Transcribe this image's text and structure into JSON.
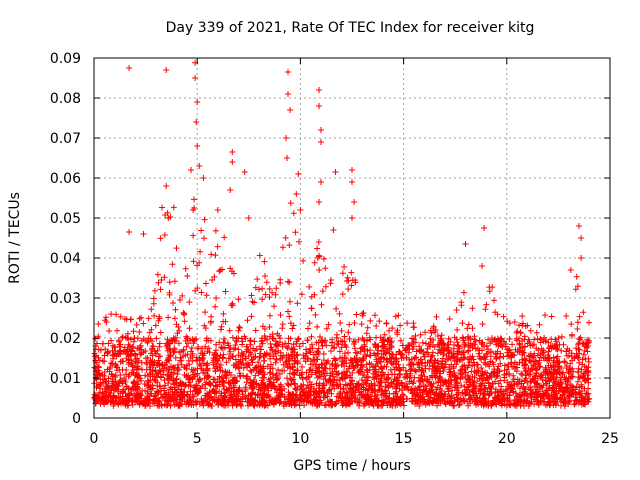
{
  "chart_data": {
    "type": "scatter",
    "title": "Day 339 of 2021, Rate Of TEC Index for receiver kitg",
    "xlabel": "GPS time / hours",
    "ylabel": "ROTI / TECUs",
    "xlim": [
      0,
      25
    ],
    "ylim": [
      0,
      0.09
    ],
    "x_ticks": [
      0,
      5,
      10,
      15,
      20,
      25
    ],
    "x_tick_labels": [
      "0",
      "5",
      "10",
      "15",
      "20",
      "25"
    ],
    "y_ticks": [
      0,
      0.01,
      0.02,
      0.03,
      0.04,
      0.05,
      0.06,
      0.07,
      0.08,
      0.09
    ],
    "y_tick_labels": [
      "0",
      "0.01",
      "0.02",
      "0.03",
      "0.04",
      "0.05",
      "0.06",
      "0.07",
      "0.08",
      "0.09"
    ],
    "grid": true,
    "marker": "plus",
    "color": "#ff0000",
    "data_span_hours": [
      0,
      24
    ],
    "baseline_range": [
      0.003,
      0.02
    ],
    "outliers": [
      {
        "x": 1.7,
        "y": 0.0875
      },
      {
        "x": 1.7,
        "y": 0.0465
      },
      {
        "x": 2.4,
        "y": 0.046
      },
      {
        "x": 3.5,
        "y": 0.087
      },
      {
        "x": 3.5,
        "y": 0.058
      },
      {
        "x": 3.6,
        "y": 0.05
      },
      {
        "x": 4.9,
        "y": 0.0888
      },
      {
        "x": 4.9,
        "y": 0.085
      },
      {
        "x": 5.0,
        "y": 0.079
      },
      {
        "x": 4.95,
        "y": 0.074
      },
      {
        "x": 5.0,
        "y": 0.068
      },
      {
        "x": 5.1,
        "y": 0.063
      },
      {
        "x": 4.8,
        "y": 0.052
      },
      {
        "x": 4.7,
        "y": 0.062
      },
      {
        "x": 5.3,
        "y": 0.06
      },
      {
        "x": 6.0,
        "y": 0.052
      },
      {
        "x": 6.7,
        "y": 0.0665
      },
      {
        "x": 6.7,
        "y": 0.064
      },
      {
        "x": 6.6,
        "y": 0.057
      },
      {
        "x": 7.3,
        "y": 0.0615
      },
      {
        "x": 7.5,
        "y": 0.05
      },
      {
        "x": 9.4,
        "y": 0.0865
      },
      {
        "x": 9.4,
        "y": 0.081
      },
      {
        "x": 9.5,
        "y": 0.077
      },
      {
        "x": 9.3,
        "y": 0.07
      },
      {
        "x": 9.35,
        "y": 0.065
      },
      {
        "x": 9.9,
        "y": 0.061
      },
      {
        "x": 9.8,
        "y": 0.056
      },
      {
        "x": 10.0,
        "y": 0.052
      },
      {
        "x": 10.9,
        "y": 0.082
      },
      {
        "x": 10.9,
        "y": 0.078
      },
      {
        "x": 11.0,
        "y": 0.072
      },
      {
        "x": 11.0,
        "y": 0.069
      },
      {
        "x": 11.0,
        "y": 0.059
      },
      {
        "x": 10.9,
        "y": 0.054
      },
      {
        "x": 11.7,
        "y": 0.0615
      },
      {
        "x": 11.6,
        "y": 0.047
      },
      {
        "x": 12.5,
        "y": 0.062
      },
      {
        "x": 12.5,
        "y": 0.059
      },
      {
        "x": 12.6,
        "y": 0.054
      },
      {
        "x": 12.5,
        "y": 0.05
      },
      {
        "x": 18.0,
        "y": 0.0435
      },
      {
        "x": 18.9,
        "y": 0.0475
      },
      {
        "x": 18.8,
        "y": 0.038
      },
      {
        "x": 23.5,
        "y": 0.048
      },
      {
        "x": 23.6,
        "y": 0.045
      },
      {
        "x": 23.6,
        "y": 0.04
      },
      {
        "x": 23.1,
        "y": 0.037
      }
    ]
  }
}
